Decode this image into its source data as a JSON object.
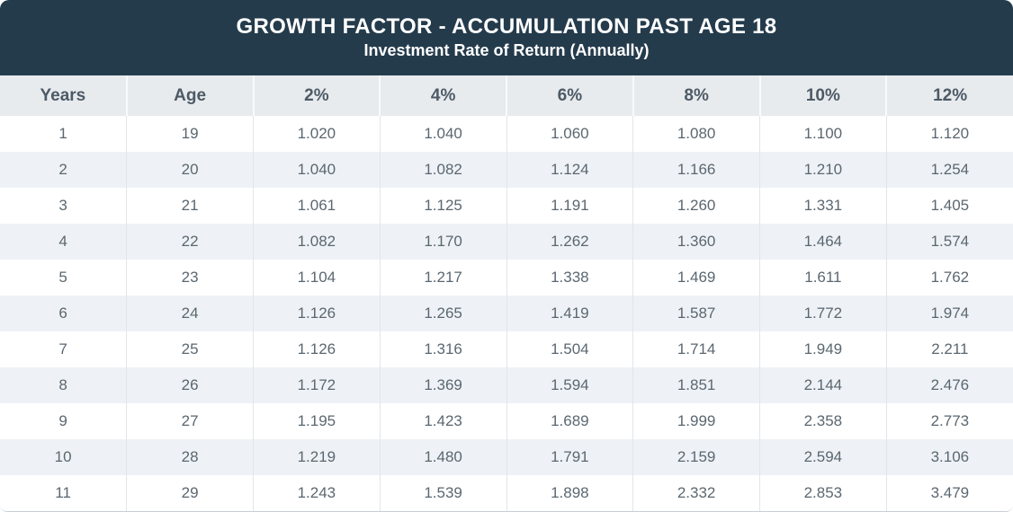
{
  "header": {
    "title": "GROWTH FACTOR - ACCUMULATION PAST AGE 18",
    "subtitle": "Investment Rate of Return (Annually)"
  },
  "chart_data": {
    "type": "table",
    "title": "GROWTH FACTOR - ACCUMULATION PAST AGE 18",
    "subtitle": "Investment Rate of Return (Annually)",
    "columns": [
      "Years",
      "Age",
      "2%",
      "4%",
      "6%",
      "8%",
      "10%",
      "12%"
    ],
    "rows": [
      [
        "1",
        "19",
        "1.020",
        "1.040",
        "1.060",
        "1.080",
        "1.100",
        "1.120"
      ],
      [
        "2",
        "20",
        "1.040",
        "1.082",
        "1.124",
        "1.166",
        "1.210",
        "1.254"
      ],
      [
        "3",
        "21",
        "1.061",
        "1.125",
        "1.191",
        "1.260",
        "1.331",
        "1.405"
      ],
      [
        "4",
        "22",
        "1.082",
        "1.170",
        "1.262",
        "1.360",
        "1.464",
        "1.574"
      ],
      [
        "5",
        "23",
        "1.104",
        "1.217",
        "1.338",
        "1.469",
        "1.611",
        "1.762"
      ],
      [
        "6",
        "24",
        "1.126",
        "1.265",
        "1.419",
        "1.587",
        "1.772",
        "1.974"
      ],
      [
        "7",
        "25",
        "1.126",
        "1.316",
        "1.504",
        "1.714",
        "1.949",
        "2.211"
      ],
      [
        "8",
        "26",
        "1.172",
        "1.369",
        "1.594",
        "1.851",
        "2.144",
        "2.476"
      ],
      [
        "9",
        "27",
        "1.195",
        "1.423",
        "1.689",
        "1.999",
        "2.358",
        "2.773"
      ],
      [
        "10",
        "28",
        "1.219",
        "1.480",
        "1.791",
        "2.159",
        "2.594",
        "3.106"
      ],
      [
        "11",
        "29",
        "1.243",
        "1.539",
        "1.898",
        "2.332",
        "2.853",
        "3.479"
      ]
    ]
  },
  "colors": {
    "title_band_bg": "#243b4c",
    "title_text": "#ffffff",
    "column_header_bg": "#e8ebee",
    "column_header_text": "#4d5a66",
    "row_alt_bg": "#eef2f6",
    "row_bg": "#ffffff",
    "body_text": "#5b6770"
  }
}
